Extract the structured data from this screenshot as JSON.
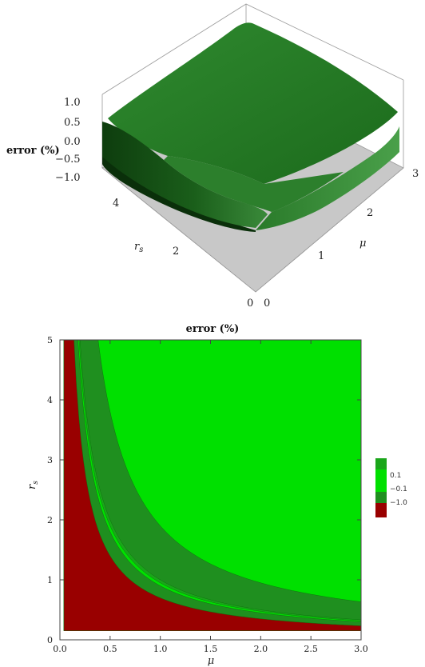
{
  "chart_data": [
    {
      "type": "surface3d",
      "zlabel": "error (%)",
      "xlabel": "μ",
      "ylabel": "r_s",
      "z_ticks": [
        "1.0",
        "0.5",
        "0.0",
        "−0.5",
        "−1.0"
      ],
      "mu_ticks": [
        "0",
        "1",
        "2",
        "3"
      ],
      "rs_ticks": [
        "0",
        "2",
        "4"
      ],
      "surface_color": "#1f7a1f",
      "floor_color": "#c8c8c8"
    },
    {
      "type": "contour",
      "title": "error (%)",
      "xlabel": "μ",
      "ylabel": "r_s",
      "xlim": [
        0,
        3.0
      ],
      "ylim": [
        0,
        5
      ],
      "x_ticks": [
        0.0,
        0.5,
        1.0,
        1.5,
        2.0,
        2.5,
        3.0
      ],
      "y_ticks": [
        0,
        1,
        2,
        3,
        4,
        5
      ],
      "x_tick_labels": [
        "0.0",
        "0.5",
        "1.0",
        "1.5",
        "2.0",
        "2.5",
        "3.0"
      ],
      "y_tick_labels": [
        "0",
        "1",
        "2",
        "3",
        "4",
        "5"
      ],
      "regions": [
        {
          "label": "",
          "color": "#00e000"
        },
        {
          "label": "0.1",
          "color": "#1aa61a"
        },
        {
          "label": "−0.1",
          "color": "#00e000"
        },
        {
          "label": "−1.0",
          "color": "#1f8f1f"
        },
        {
          "label": "",
          "color": "#990000"
        }
      ],
      "boundaries": [
        {
          "name": "−1.0",
          "k": 0.7
        },
        {
          "name": "0.1",
          "k": 0.95
        },
        {
          "name": "−0.1",
          "k": 1.0
        },
        {
          "name": "upper",
          "k": 1.9
        }
      ]
    }
  ]
}
